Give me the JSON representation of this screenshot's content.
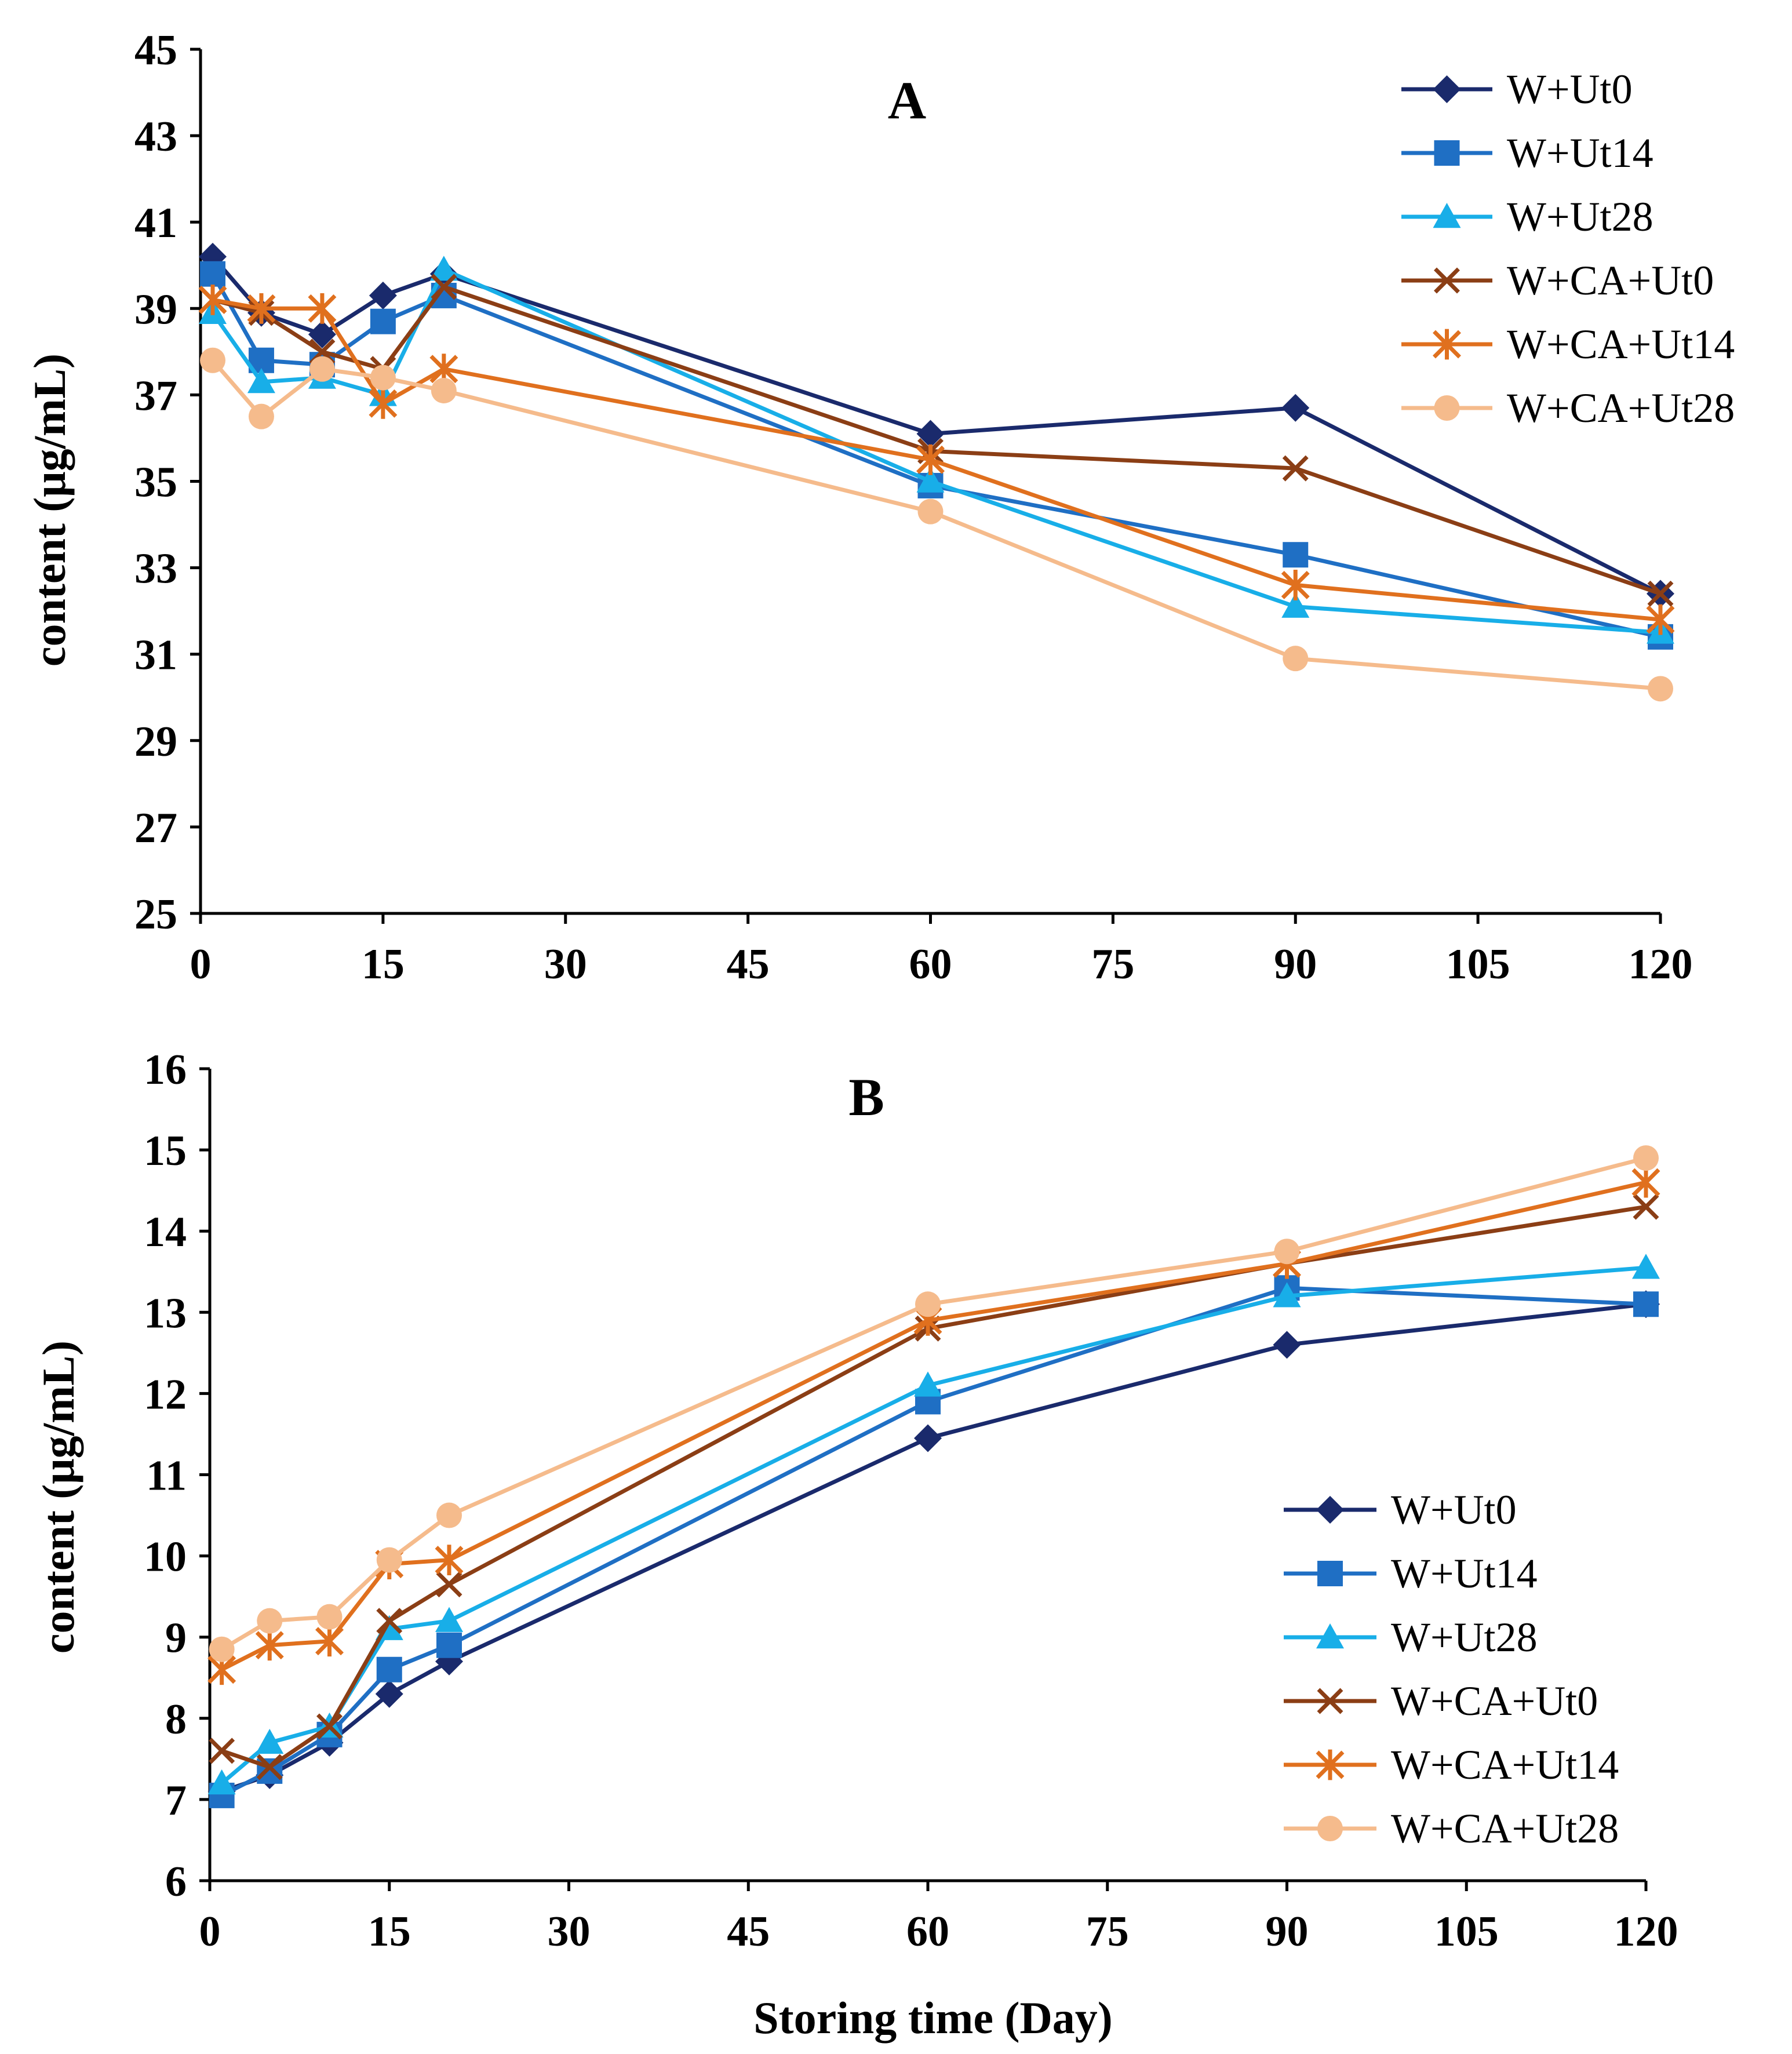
{
  "xlabel": "Storing time (Day)",
  "legend_names": [
    "W+Ut0",
    "W+Ut14",
    "W+Ut28",
    "W+CA+Ut0",
    "W+CA+Ut14",
    "W+CA+Ut28"
  ],
  "colors": [
    "#1a2a6c",
    "#1f6fc4",
    "#18aee8",
    "#8b3e15",
    "#e0701e",
    "#f5bb8c"
  ],
  "markers": [
    "diamond",
    "square",
    "triangle",
    "x",
    "asterisk",
    "circle"
  ],
  "chart_data": [
    {
      "type": "line",
      "title": "A",
      "xlabel": "",
      "ylabel": "content (μg/mL)",
      "xlim": [
        0,
        120
      ],
      "ylim": [
        25,
        45
      ],
      "xticks": [
        "0",
        "15",
        "30",
        "45",
        "60",
        "75",
        "90",
        "105",
        "120"
      ],
      "yticks": [
        "25",
        "27",
        "29",
        "31",
        "33",
        "35",
        "37",
        "39",
        "41",
        "43",
        "45"
      ],
      "x": [
        1,
        5,
        10,
        15,
        20,
        60,
        90,
        120
      ],
      "legend_position": "top-right",
      "series": [
        {
          "name": "W+Ut0",
          "values": [
            40.2,
            38.9,
            38.4,
            39.3,
            39.8,
            36.1,
            36.7,
            32.4
          ]
        },
        {
          "name": "W+Ut14",
          "values": [
            39.8,
            37.8,
            37.7,
            38.7,
            39.3,
            34.9,
            33.3,
            31.4
          ]
        },
        {
          "name": "W+Ut28",
          "values": [
            38.9,
            37.3,
            37.4,
            37.0,
            39.9,
            35.0,
            32.1,
            31.5
          ]
        },
        {
          "name": "W+CA+Ut0",
          "values": [
            39.2,
            38.9,
            38.0,
            37.6,
            39.5,
            35.7,
            35.3,
            32.4
          ]
        },
        {
          "name": "W+CA+Ut14",
          "values": [
            39.2,
            39.0,
            39.0,
            36.8,
            37.6,
            35.5,
            32.6,
            31.8
          ]
        },
        {
          "name": "W+CA+Ut28",
          "values": [
            37.8,
            36.5,
            37.6,
            37.4,
            37.1,
            34.3,
            30.9,
            30.2
          ]
        }
      ]
    },
    {
      "type": "line",
      "title": "B",
      "xlabel": "Storing time (Day)",
      "ylabel": "content (μg/mL)",
      "xlim": [
        0,
        120
      ],
      "ylim": [
        6,
        16
      ],
      "xticks": [
        "0",
        "15",
        "30",
        "45",
        "60",
        "75",
        "90",
        "105",
        "120"
      ],
      "yticks": [
        "6",
        "7",
        "8",
        "9",
        "10",
        "11",
        "12",
        "13",
        "14",
        "15",
        "16"
      ],
      "x": [
        1,
        5,
        10,
        15,
        20,
        60,
        90,
        120
      ],
      "legend_position": "bottom-right",
      "series": [
        {
          "name": "W+Ut0",
          "values": [
            7.1,
            7.3,
            7.7,
            8.3,
            8.7,
            11.45,
            12.6,
            13.1
          ]
        },
        {
          "name": "W+Ut14",
          "values": [
            7.05,
            7.35,
            7.8,
            8.6,
            8.9,
            11.9,
            13.3,
            13.1
          ]
        },
        {
          "name": "W+Ut28",
          "values": [
            7.2,
            7.7,
            7.9,
            9.1,
            9.2,
            12.1,
            13.2,
            13.55
          ]
        },
        {
          "name": "W+CA+Ut0",
          "values": [
            7.6,
            7.4,
            7.9,
            9.2,
            9.65,
            12.8,
            13.6,
            14.3
          ]
        },
        {
          "name": "W+CA+Ut14",
          "values": [
            8.6,
            8.9,
            8.95,
            9.9,
            9.95,
            12.9,
            13.6,
            14.6
          ]
        },
        {
          "name": "W+CA+Ut28",
          "values": [
            8.85,
            9.2,
            9.25,
            9.95,
            10.5,
            13.1,
            13.75,
            14.9
          ]
        }
      ]
    }
  ]
}
